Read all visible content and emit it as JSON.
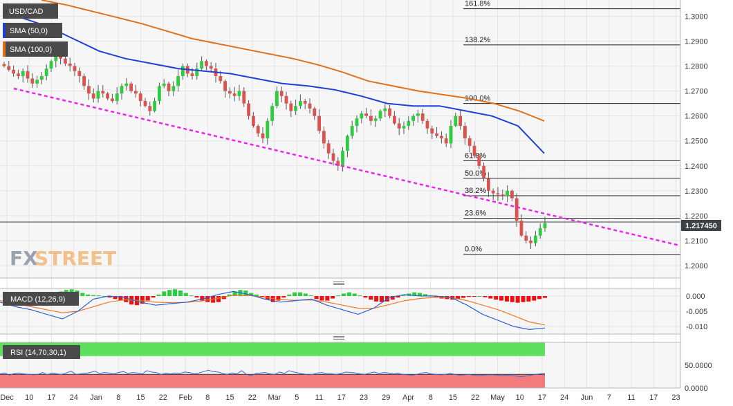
{
  "logo": {
    "part1": "FX",
    "part2": "STREET"
  },
  "colors": {
    "bull": "#2ecc40",
    "bear": "#d9534f",
    "sma50": "#1f3fd6",
    "sma100": "#e0701a",
    "trend": "#ee22ee",
    "macd": "#2a62d4",
    "signal": "#ee7722",
    "rsi": "#3a66d8",
    "rsi_upper_fill": "#5ee05e",
    "rsi_lower_fill": "#f47b7b"
  },
  "chart_data": [
    {
      "type": "candlestick",
      "symbol": "USD/CAD",
      "legend": [
        {
          "name": "USD/CAD",
          "color": "#4a4a4a"
        },
        {
          "name": "SMA (50,0)",
          "color": "#1f3fd6"
        },
        {
          "name": "SMA (100,0)",
          "color": "#e0701a"
        }
      ],
      "last_price": "1.217450",
      "y_ticks": [
        "1.3000",
        "1.2900",
        "1.2800",
        "1.2700",
        "1.2600",
        "1.2500",
        "1.2400",
        "1.2300",
        "1.2200",
        "1.2100",
        "1.2000"
      ],
      "ylim": [
        1.195,
        1.3065
      ],
      "x_ticks": [
        "Dec",
        "10",
        "17",
        "24",
        "Jan",
        "8",
        "15",
        "22",
        "Feb",
        "8",
        "15",
        "22",
        "Mar",
        "5",
        "11",
        "17",
        "23",
        "29",
        "Apr",
        "8",
        "15",
        "22",
        "May",
        "10",
        "17",
        "24",
        "Jun",
        "7",
        "11",
        "17",
        "23"
      ],
      "fibonacci": [
        {
          "label": "161.8%",
          "value": 1.303
        },
        {
          "label": "138.2%",
          "value": 1.2885
        },
        {
          "label": "100.0%",
          "value": 1.265
        },
        {
          "label": "61.8%",
          "value": 1.242
        },
        {
          "label": "50.0%",
          "value": 1.235
        },
        {
          "label": "38.2%",
          "value": 1.228
        },
        {
          "label": "23.6%",
          "value": 1.219
        },
        {
          "label": "0.0%",
          "value": 1.2045
        }
      ],
      "trendline": {
        "start": 1.271,
        "end": 1.208
      },
      "sma50_path": [
        1.2995,
        1.296,
        1.291,
        1.286,
        1.283,
        1.281,
        1.279,
        1.278,
        1.277,
        1.275,
        1.273,
        1.272,
        1.2705,
        1.268,
        1.265,
        1.264,
        1.264,
        1.262,
        1.26,
        1.256,
        1.245
      ],
      "sma100_path": [
        1.3065,
        1.3045,
        1.302,
        1.2995,
        1.297,
        1.294,
        1.291,
        1.289,
        1.287,
        1.285,
        1.283,
        1.2805,
        1.2775,
        1.274,
        1.272,
        1.27,
        1.2685,
        1.267,
        1.265,
        1.262,
        1.258
      ],
      "closes": [
        1.28,
        1.2785,
        1.277,
        1.276,
        1.278,
        1.275,
        1.273,
        1.2745,
        1.276,
        1.279,
        1.282,
        1.285,
        1.283,
        1.281,
        1.28,
        1.278,
        1.276,
        1.272,
        1.269,
        1.267,
        1.27,
        1.269,
        1.267,
        1.266,
        1.269,
        1.272,
        1.273,
        1.27,
        1.269,
        1.266,
        1.264,
        1.262,
        1.266,
        1.272,
        1.273,
        1.27,
        1.272,
        1.276,
        1.28,
        1.277,
        1.276,
        1.279,
        1.282,
        1.28,
        1.279,
        1.276,
        1.274,
        1.27,
        1.269,
        1.268,
        1.27,
        1.265,
        1.26,
        1.256,
        1.253,
        1.251,
        1.258,
        1.264,
        1.27,
        1.268,
        1.265,
        1.262,
        1.264,
        1.266,
        1.265,
        1.263,
        1.26,
        1.254,
        1.249,
        1.245,
        1.242,
        1.24,
        1.246,
        1.252,
        1.256,
        1.259,
        1.261,
        1.26,
        1.258,
        1.259,
        1.262,
        1.263,
        1.26,
        1.257,
        1.255,
        1.256,
        1.258,
        1.26,
        1.261,
        1.258,
        1.255,
        1.253,
        1.252,
        1.251,
        1.249,
        1.256,
        1.26,
        1.256,
        1.251,
        1.248,
        1.244,
        1.24,
        1.235,
        1.23,
        1.229,
        1.2285,
        1.228,
        1.23,
        1.227,
        1.218,
        1.212,
        1.21,
        1.209,
        1.212,
        1.215,
        1.217
      ],
      "macd_line": [
        -0.002,
        -0.0035,
        -0.0045,
        -0.006,
        -0.0075,
        -0.005,
        -0.001,
        0.0,
        -0.0005,
        -0.002,
        -0.003,
        -0.0025,
        -0.002,
        -0.001,
        0.0005,
        0.0015,
        0.0005,
        -0.001,
        -0.002,
        -0.0015,
        -0.001,
        -0.003,
        -0.0045,
        -0.006,
        -0.004,
        -0.0005,
        0.0005,
        0.0,
        0.0,
        -0.0005,
        -0.003,
        -0.006,
        -0.008,
        -0.01,
        -0.011,
        -0.0105
      ],
      "macd_signal": [
        -0.0015,
        -0.0025,
        -0.0035,
        -0.0045,
        -0.0055,
        -0.005,
        -0.0035,
        -0.002,
        -0.0012,
        -0.0015,
        -0.002,
        -0.0022,
        -0.0021,
        -0.0016,
        -0.0007,
        0.0003,
        0.0002,
        -0.0004,
        -0.0012,
        -0.0014,
        -0.0013,
        -0.002,
        -0.003,
        -0.004,
        -0.004,
        -0.0028,
        -0.0015,
        -0.0008,
        -0.0004,
        -0.0005,
        -0.0015,
        -0.003,
        -0.0045,
        -0.0065,
        -0.0085,
        -0.0095
      ],
      "macd_histogram": [
        0.001,
        0.0015,
        0.002,
        0.0022,
        0.0018,
        0.001,
        0.0005,
        0.0003,
        0.0002,
        0.0,
        -0.0005,
        -0.001,
        -0.0015,
        -0.002,
        -0.0028,
        -0.003,
        -0.0025,
        -0.0015,
        -0.0005,
        0.0005,
        0.0015,
        0.002,
        0.0022,
        0.0018,
        0.001,
        0.0002,
        -0.0005,
        -0.0015,
        -0.002,
        -0.0022,
        -0.002,
        -0.001,
        0.0005,
        0.0015,
        0.002,
        0.0018,
        0.001,
        0.0005,
        -0.0003,
        -0.0012,
        -0.002,
        -0.0015,
        -0.0005,
        0.0005,
        0.0012,
        0.0012,
        0.0008,
        0.0002,
        -0.001,
        -0.0015,
        -0.0015,
        -0.0008,
        0.0002,
        0.0008,
        0.0012,
        0.0008,
        0.0002,
        -0.0005,
        -0.0012,
        -0.0018,
        -0.002,
        -0.0018,
        -0.0012,
        -0.0005,
        0.0003,
        0.0008,
        0.0012,
        0.001,
        0.0006,
        0.0002,
        -0.0003,
        -0.0008,
        -0.001,
        -0.0012,
        -0.001,
        -0.0006,
        -0.0003,
        -0.0001,
        0.0,
        -0.0004,
        -0.0008,
        -0.0012,
        -0.0015,
        -0.0018,
        -0.002,
        -0.0022,
        -0.002,
        -0.0018,
        -0.0015,
        -0.001,
        -0.0006
      ],
      "macd_legend": "MACD (12,26,9)",
      "macd_ticks": [
        "0.000",
        "-0.005",
        "-0.010"
      ],
      "macd_ylim": [
        -0.0125,
        0.0025
      ],
      "rsi_line": [
        31,
        33,
        28,
        32,
        33,
        31,
        30,
        29,
        30,
        34,
        29,
        33,
        31,
        30,
        33,
        37,
        30,
        31,
        32,
        34,
        37,
        32,
        34,
        33,
        31,
        34,
        36,
        32,
        34,
        33,
        31,
        38,
        35,
        34,
        30,
        32,
        31,
        33,
        32,
        35,
        34,
        31,
        33,
        36,
        39,
        36,
        35,
        32,
        30,
        33,
        31,
        38,
        30,
        27,
        32,
        33,
        34,
        31,
        30,
        35,
        32,
        38,
        35,
        33,
        31,
        29,
        30,
        33,
        34,
        31,
        31,
        30,
        32,
        35,
        34,
        33,
        31,
        30,
        33,
        35,
        32,
        34,
        33,
        31,
        32,
        30,
        29,
        28,
        30,
        33,
        34,
        31,
        30,
        29,
        30,
        32,
        30,
        28,
        29,
        30,
        28,
        27,
        28,
        29,
        29,
        28,
        27,
        28,
        27,
        26,
        25,
        26,
        28,
        30,
        31,
        32
      ],
      "rsi_legend": "RSI (14,70,30,1)",
      "rsi_ticks": [
        "50.0000",
        "0.0000"
      ],
      "rsi_ylim": [
        0,
        100
      ],
      "rsi_levels": [
        70,
        30
      ]
    }
  ]
}
